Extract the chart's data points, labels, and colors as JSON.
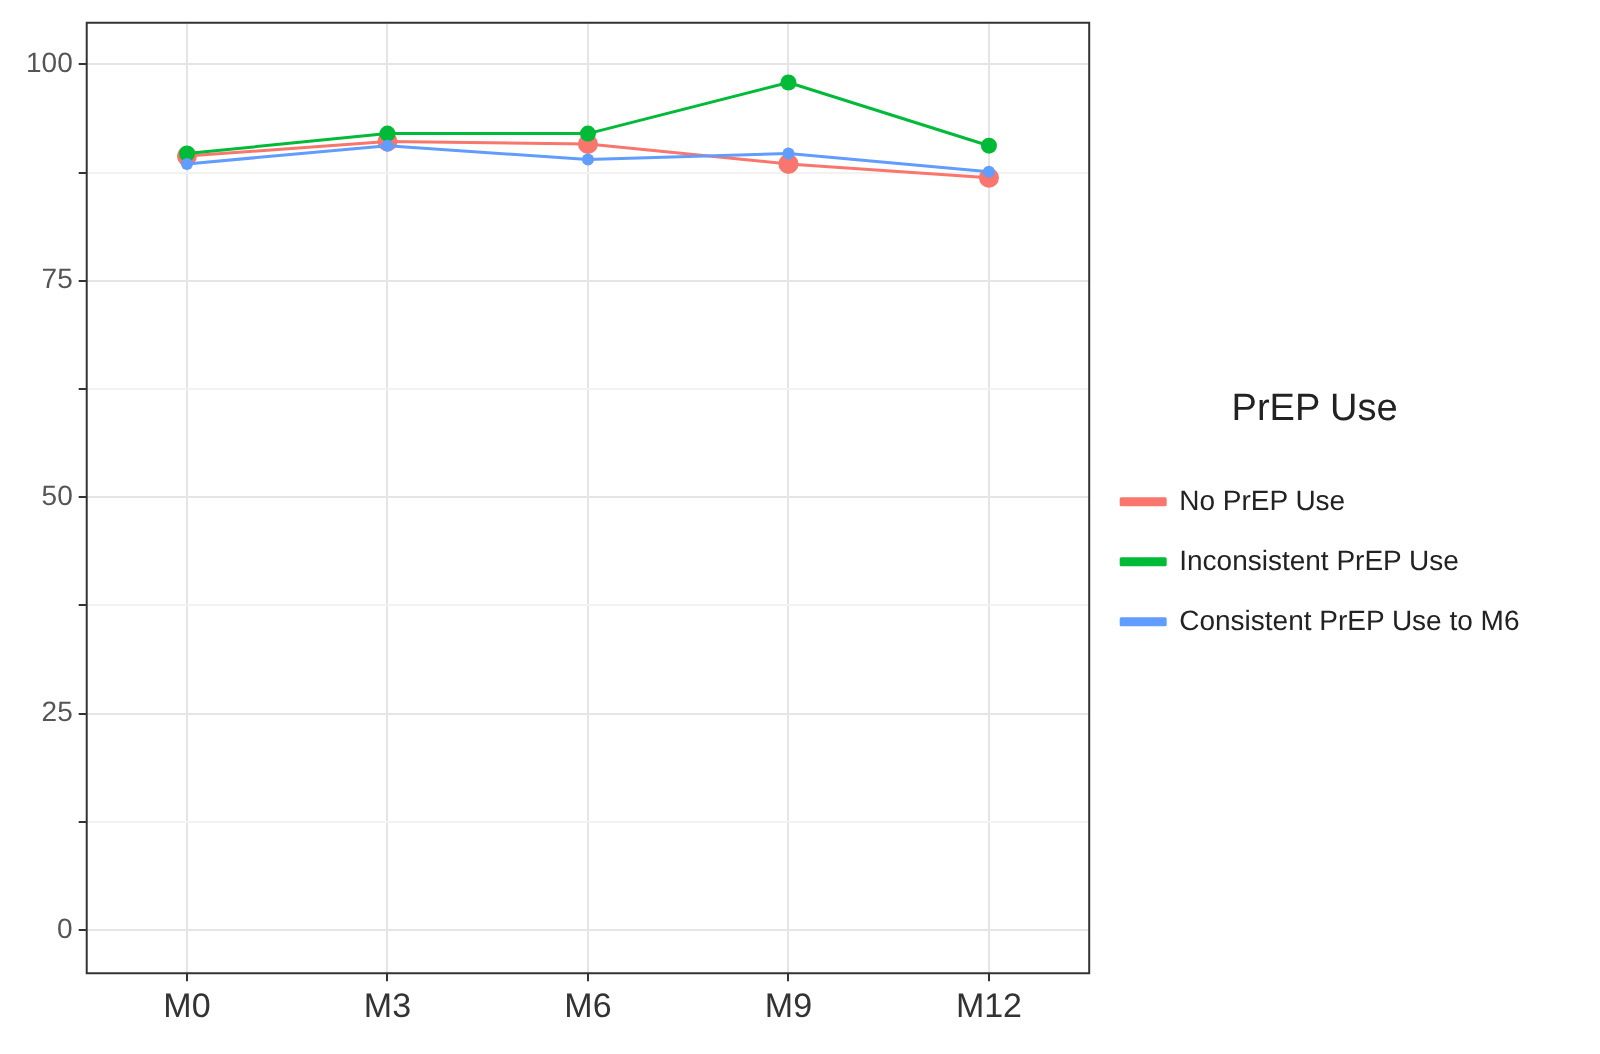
{
  "chart_data": {
    "type": "line",
    "legend_title": "PrEP Use",
    "categories": [
      "M0",
      "M3",
      "M6",
      "M9",
      "M12"
    ],
    "series": [
      {
        "name": "No PrEP Use",
        "color": "#f8766d",
        "values": [
          89.4,
          91.1,
          90.8,
          88.5,
          86.9
        ]
      },
      {
        "name": "Inconsistent PrEP Use",
        "color": "#00ba38",
        "values": [
          89.7,
          92.0,
          92.0,
          97.9,
          90.6
        ]
      },
      {
        "name": "Consistent PrEP Use to M6",
        "color": "#619cff",
        "values": [
          88.5,
          90.6,
          89.0,
          89.7,
          87.6
        ]
      }
    ],
    "ylim": [
      -5,
      104.8
    ],
    "yticks": [
      0,
      {
        "value": 12.5,
        "label": null
      },
      25,
      {
        "value": 37.5,
        "label": null
      },
      50,
      {
        "value": 62.5,
        "label": null
      },
      75,
      {
        "value": 87.5,
        "label": null
      },
      100
    ],
    "grid": true,
    "legend": "right",
    "marker": "circle",
    "line_style": "solid"
  }
}
